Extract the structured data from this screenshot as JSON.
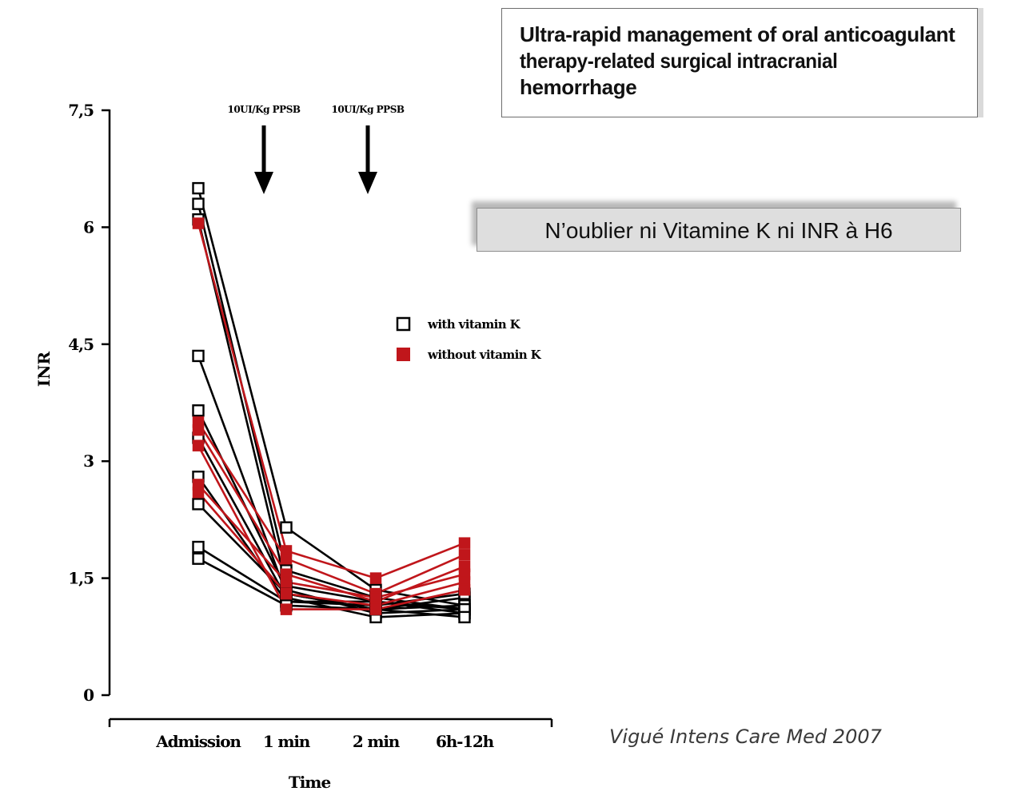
{
  "title_box": {
    "lines": [
      "Ultra-rapid management of oral anticoagulant",
      "therapy-related surgical intracranial",
      "hemorrhage"
    ]
  },
  "note": "N’oublier ni Vitamine K ni INR à H6",
  "citation": "Vigué Intens Care Med 2007",
  "annotations": [
    "10UI/Kg PPSB",
    "10UI/Kg PPSB"
  ],
  "colors": {
    "with_vitamin_k": "#000000",
    "without_vitamin_k": "#c0161b"
  },
  "chart_data": {
    "type": "line",
    "xlabel": "Time",
    "ylabel": "INR",
    "categories": [
      "Admission",
      "1 min",
      "2 min",
      "6h-12h"
    ],
    "ylim": [
      0,
      7.5
    ],
    "yticks": [
      "0",
      "1,5",
      "3",
      "4,5",
      "6",
      "7,5"
    ],
    "legend": [
      {
        "label": "with vitamin K",
        "color": "#000000",
        "marker": "open-square"
      },
      {
        "label": "without vitamin K",
        "color": "#c0161b",
        "marker": "filled-square"
      }
    ],
    "legend_position": "center-right",
    "series": [
      {
        "group": "with vitamin K",
        "values": [
          6.5,
          2.15,
          1.35,
          1.15
        ]
      },
      {
        "group": "with vitamin K",
        "values": [
          6.3,
          1.6,
          1.25,
          1.1
        ]
      },
      {
        "group": "with vitamin K",
        "values": [
          6.1,
          1.4,
          1.2,
          1.05
        ]
      },
      {
        "group": "with vitamin K",
        "values": [
          4.35,
          1.3,
          1.1,
          1.25
        ]
      },
      {
        "group": "with vitamin K",
        "values": [
          3.65,
          1.35,
          1.05,
          1.1
        ]
      },
      {
        "group": "with vitamin K",
        "values": [
          3.3,
          1.25,
          1.0,
          1.05
        ]
      },
      {
        "group": "with vitamin K",
        "values": [
          2.8,
          1.2,
          1.15,
          1.3
        ]
      },
      {
        "group": "with vitamin K",
        "values": [
          2.45,
          1.3,
          1.1,
          1.15
        ]
      },
      {
        "group": "with vitamin K",
        "values": [
          1.9,
          1.2,
          1.2,
          1.1
        ]
      },
      {
        "group": "with vitamin K",
        "values": [
          1.75,
          1.15,
          1.1,
          1.0
        ]
      },
      {
        "group": "without vitamin K",
        "values": [
          6.05,
          1.85,
          1.5,
          1.95
        ]
      },
      {
        "group": "without vitamin K",
        "values": [
          3.5,
          1.75,
          1.3,
          1.8
        ]
      },
      {
        "group": "without vitamin K",
        "values": [
          3.4,
          1.55,
          1.2,
          1.65
        ]
      },
      {
        "group": "without vitamin K",
        "values": [
          2.7,
          1.45,
          1.25,
          1.55
        ]
      },
      {
        "group": "without vitamin K",
        "values": [
          2.6,
          1.3,
          1.15,
          1.45
        ]
      },
      {
        "group": "without vitamin K",
        "values": [
          3.2,
          1.1,
          1.1,
          1.35
        ]
      }
    ]
  }
}
